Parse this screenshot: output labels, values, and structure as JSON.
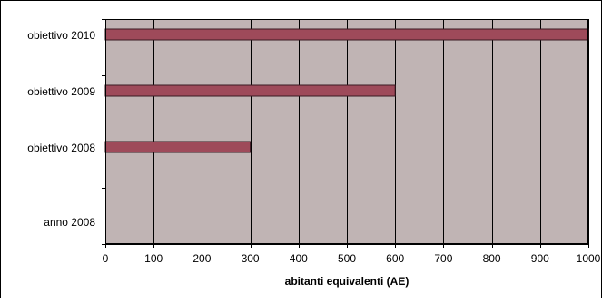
{
  "chart_data": {
    "type": "bar",
    "orientation": "horizontal",
    "categories": [
      "obiettivo 2010",
      "obiettivo 2009",
      "obiettivo 2008",
      "anno 2008"
    ],
    "values": [
      1000,
      600,
      300,
      0
    ],
    "xlabel": "abitanti equivalenti (AE)",
    "xlim": [
      0,
      1000
    ],
    "xticks": [
      "0",
      "100",
      "200",
      "300",
      "400",
      "500",
      "600",
      "700",
      "800",
      "900",
      "1000"
    ],
    "grid": true,
    "colors": {
      "plot_background": "#c0b4b4",
      "bar_fill": "#9e4a5a",
      "bar_stroke": "#3a1a22",
      "gridline": "#000000"
    }
  }
}
